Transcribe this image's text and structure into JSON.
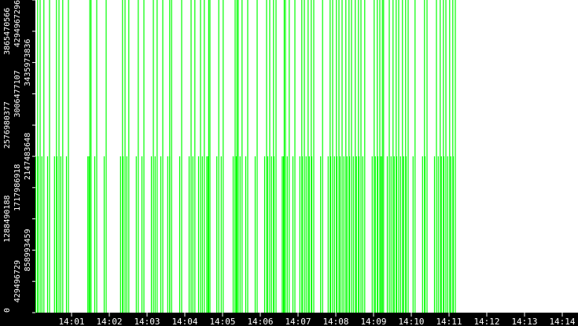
{
  "chart_data": {
    "type": "bar",
    "title": "",
    "xlabel": "",
    "ylabel": "",
    "x_ticks": [
      "14:01",
      "14:02",
      "14:03",
      "14:04",
      "14:05",
      "14:06",
      "14:07",
      "14:08",
      "14:09",
      "14:10",
      "14:11",
      "14:12",
      "14:13",
      "14:14"
    ],
    "xlim": [
      "14:00:00",
      "14:15:00"
    ],
    "y_ticks": [
      "0",
      "429496729",
      "858993459",
      "1288490188",
      "1717986918",
      "2147483648",
      "2576980377",
      "3006477107",
      "3435973836",
      "3865470566",
      "4294967296"
    ],
    "ylim": [
      0,
      4294967296
    ],
    "grid": false,
    "colors": {
      "bar": "#00ff00",
      "axis_background": "#000000",
      "axis_text": "#ffffff",
      "plot_background": "#ffffff"
    },
    "events": [
      "14:00:06",
      "14:00:10",
      "14:00:16",
      "14:00:25",
      "14:00:36",
      "14:00:40",
      "14:00:46",
      "14:00:55",
      "14:01:29",
      "14:01:31",
      "14:01:40",
      "14:01:55",
      "14:02:21",
      "14:02:25",
      "14:02:31",
      "14:02:46",
      "14:02:55",
      "14:03:10",
      "14:03:16",
      "14:03:25",
      "14:03:36",
      "14:03:39",
      "14:03:55",
      "14:04:10",
      "14:04:16",
      "14:04:25",
      "14:04:31",
      "14:04:38",
      "14:04:40",
      "14:04:54",
      "14:05:01",
      "14:05:20",
      "14:05:23",
      "14:05:25",
      "14:05:31",
      "14:05:40",
      "14:05:55",
      "14:06:10",
      "14:06:15",
      "14:06:21",
      "14:06:25",
      "14:06:38",
      "14:06:40",
      "14:06:46",
      "14:06:55",
      "14:07:06",
      "14:07:10",
      "14:07:16",
      "14:07:21",
      "14:07:25",
      "14:07:39",
      "14:07:51",
      "14:07:55",
      "14:08:01",
      "14:08:05",
      "14:08:10",
      "14:08:16",
      "14:08:21",
      "14:08:25",
      "14:08:31",
      "14:08:36",
      "14:08:40",
      "14:08:46",
      "14:09:01",
      "14:09:06",
      "14:09:10",
      "14:09:14",
      "14:09:16",
      "14:09:25",
      "14:09:31",
      "14:09:36",
      "14:09:40",
      "14:09:46",
      "14:09:51",
      "14:09:55",
      "14:10:06",
      "14:10:21",
      "14:10:25",
      "14:10:40",
      "14:10:46",
      "14:10:51",
      "14:10:55",
      "14:11:01",
      "14:11:06",
      "14:11:10"
    ],
    "series": [
      {
        "values_note_free": true,
        "full_value": 4294967296,
        "half_value": 2147483648
      }
    ]
  }
}
